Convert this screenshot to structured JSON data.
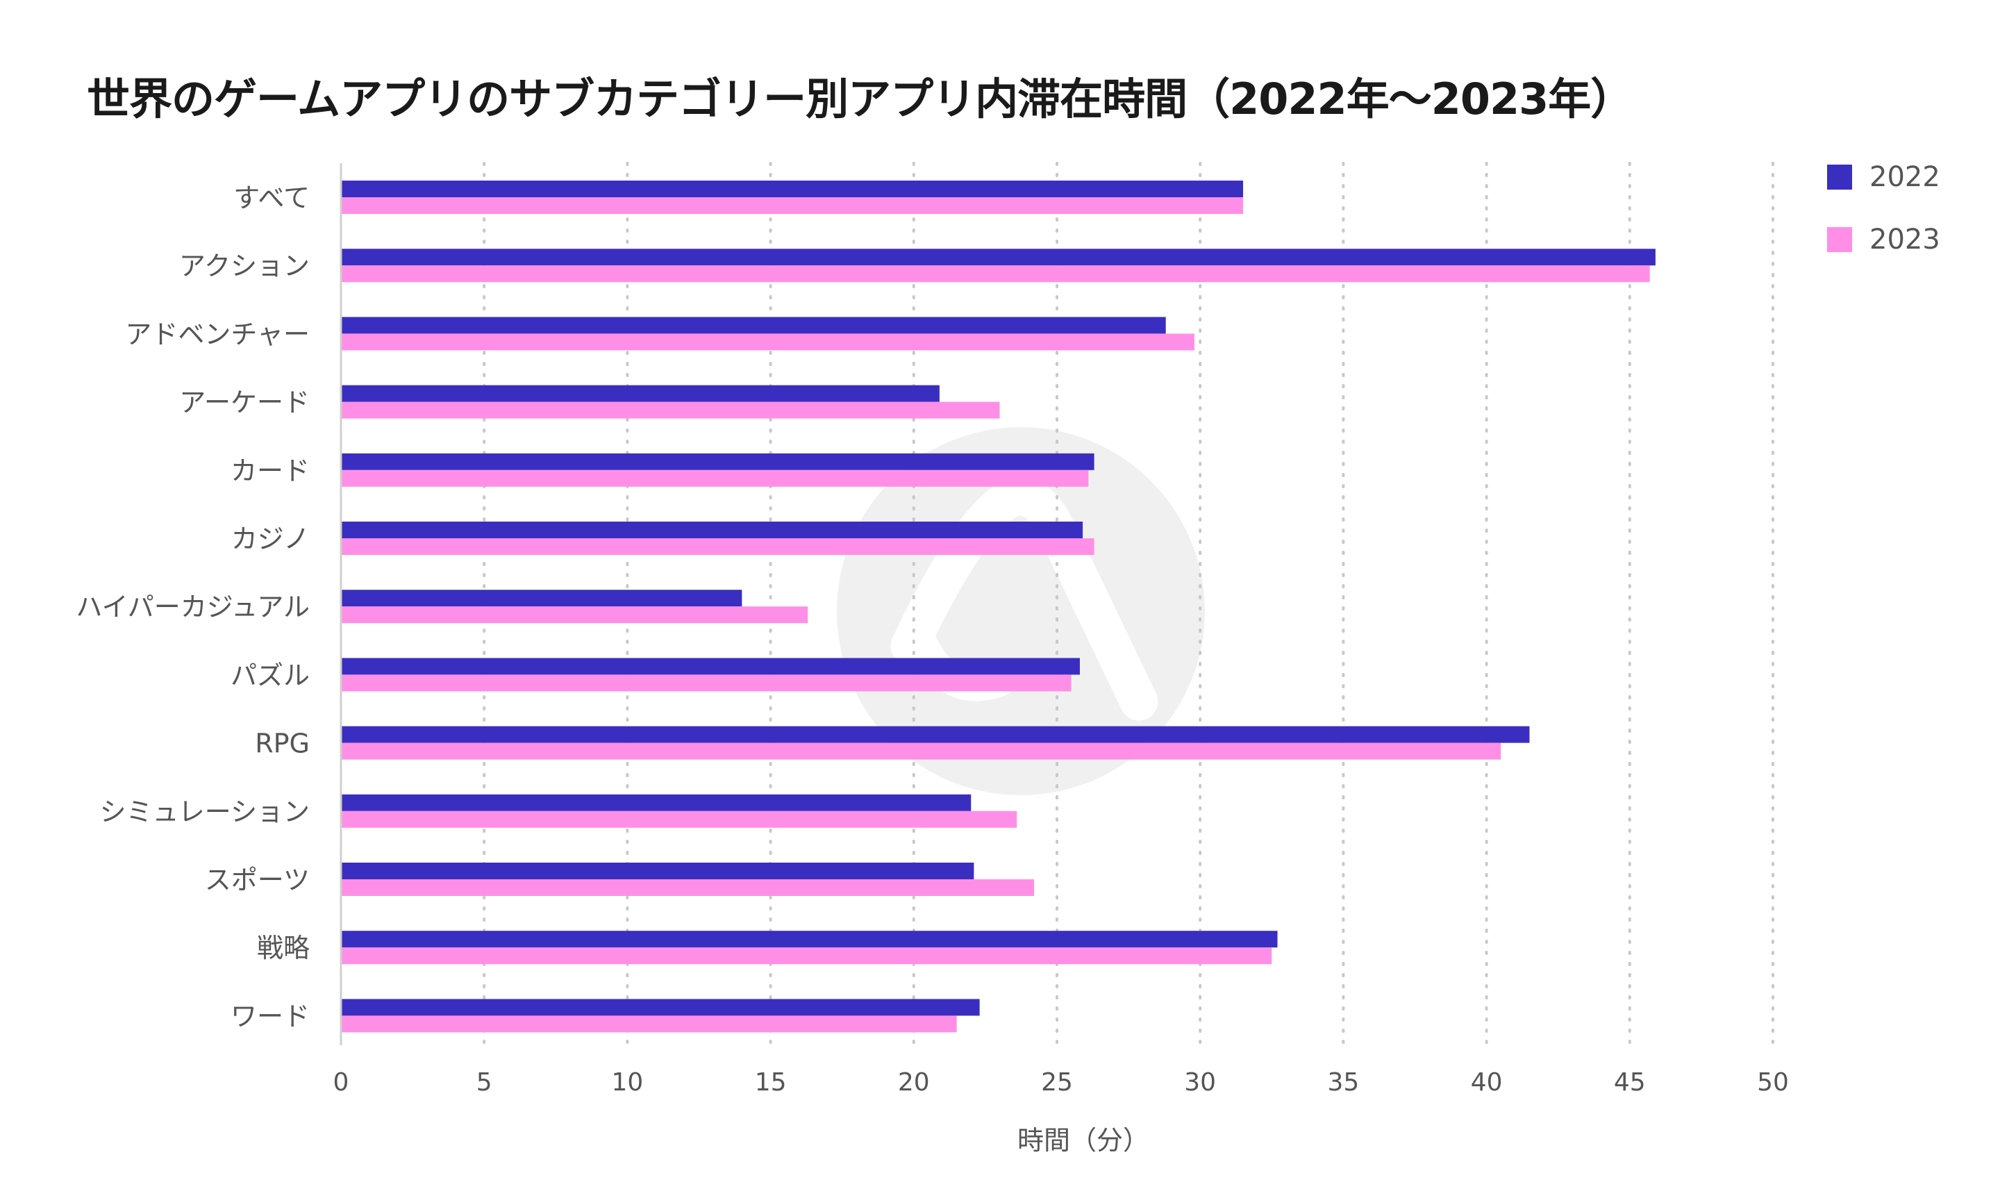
{
  "chart_data": {
    "type": "bar",
    "orientation": "horizontal",
    "title": "世界のゲームアプリのサブカテゴリー別アプリ内滞在時間（2022年〜2023年）",
    "xlabel": "時間（分）",
    "ylabel": "",
    "xlim": [
      0,
      50
    ],
    "xticks": [
      0,
      5,
      10,
      15,
      20,
      25,
      30,
      35,
      40,
      45,
      50
    ],
    "grid": "vertical dotted",
    "legend_position": "top-right",
    "categories": [
      "すべて",
      "アクション",
      "アドベンチャー",
      "アーケード",
      "カード",
      "カジノ",
      "ハイパーカジュアル",
      "パズル",
      "RPG",
      "シミュレーション",
      "スポーツ",
      "戦略",
      "ワード"
    ],
    "series": [
      {
        "name": "2022",
        "color": "#3a2ec0",
        "values": [
          31.5,
          45.9,
          28.8,
          20.9,
          26.3,
          25.9,
          14.0,
          25.8,
          41.5,
          22.0,
          22.1,
          32.7,
          22.3
        ]
      },
      {
        "name": "2023",
        "color": "#ff8fe6",
        "values": [
          31.5,
          45.7,
          29.8,
          23.0,
          26.1,
          26.3,
          16.3,
          25.5,
          40.5,
          23.6,
          24.2,
          32.5,
          21.5
        ]
      }
    ]
  }
}
